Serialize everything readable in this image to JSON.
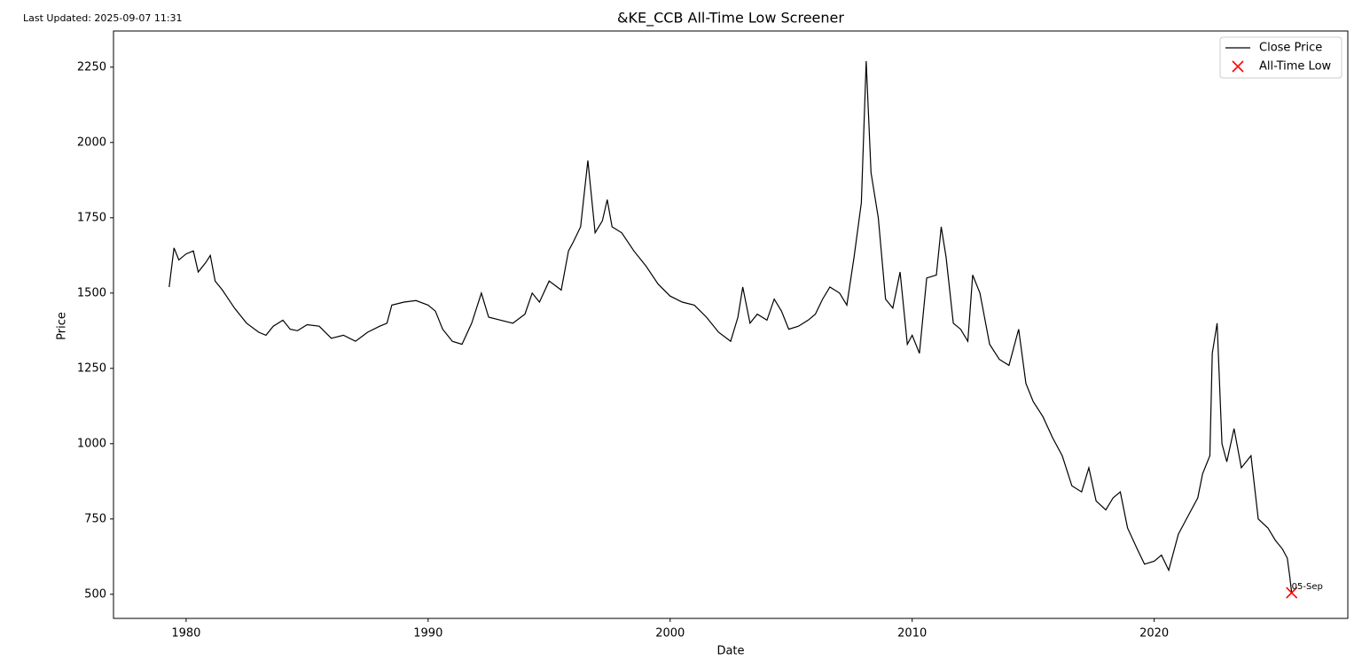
{
  "chart_data": {
    "type": "line",
    "title": "&KE_CCB All-Time Low Screener",
    "annotation": "Last Updated: 2025-09-07 11:31",
    "x_label": "Date",
    "y_label": "Price",
    "xlim": [
      1977,
      2028
    ],
    "ylim": [
      420,
      2370
    ],
    "xticks": [
      1980,
      1990,
      2000,
      2010,
      2020
    ],
    "yticks": [
      500,
      750,
      1000,
      1250,
      1500,
      1750,
      2000,
      2250
    ],
    "legend": "upper right",
    "x": [
      1979.3,
      1979.5,
      1979.7,
      1980.0,
      1980.3,
      1980.5,
      1980.8,
      1981.0,
      1981.2,
      1981.5,
      1982.0,
      1982.3,
      1982.5,
      1983.0,
      1983.3,
      1983.6,
      1984.0,
      1984.3,
      1984.6,
      1985.0,
      1985.5,
      1986.0,
      1986.5,
      1987.0,
      1987.5,
      1988.0,
      1988.3,
      1988.5,
      1989.0,
      1989.5,
      1990.0,
      1990.3,
      1990.6,
      1991.0,
      1991.4,
      1991.8,
      1992.2,
      1992.5,
      1993.0,
      1993.5,
      1994.0,
      1994.3,
      1994.6,
      1995.0,
      1995.5,
      1995.8,
      1996.0,
      1996.3,
      1996.6,
      1996.9,
      1997.2,
      1997.4,
      1997.6,
      1998.0,
      1998.5,
      1999.0,
      1999.5,
      2000.0,
      2000.5,
      2001.0,
      2001.5,
      2002.0,
      2002.5,
      2002.8,
      2003.0,
      2003.3,
      2003.6,
      2004.0,
      2004.3,
      2004.6,
      2004.9,
      2005.3,
      2005.7,
      2006.0,
      2006.3,
      2006.6,
      2007.0,
      2007.3,
      2007.6,
      2007.9,
      2008.1,
      2008.3,
      2008.6,
      2008.9,
      2009.2,
      2009.5,
      2009.8,
      2010.0,
      2010.3,
      2010.6,
      2011.0,
      2011.2,
      2011.4,
      2011.7,
      2012.0,
      2012.3,
      2012.5,
      2012.8,
      2013.2,
      2013.6,
      2014.0,
      2014.4,
      2014.7,
      2015.0,
      2015.4,
      2015.8,
      2016.2,
      2016.6,
      2017.0,
      2017.3,
      2017.6,
      2018.0,
      2018.3,
      2018.6,
      2018.9,
      2019.3,
      2019.6,
      2020.0,
      2020.3,
      2020.6,
      2021.0,
      2021.4,
      2021.8,
      2022.0,
      2022.3,
      2022.4,
      2022.6,
      2022.8,
      2023.0,
      2023.3,
      2023.6,
      2024.0,
      2024.3,
      2024.7,
      2025.0,
      2025.3,
      2025.5,
      2025.6,
      2025.68
    ],
    "series": [
      {
        "name": "Close Price",
        "color": "#000000",
        "values": [
          1520,
          1650,
          1610,
          1630,
          1640,
          1570,
          1600,
          1625,
          1540,
          1510,
          1450,
          1420,
          1400,
          1370,
          1360,
          1390,
          1410,
          1380,
          1375,
          1395,
          1390,
          1350,
          1360,
          1340,
          1370,
          1390,
          1400,
          1460,
          1470,
          1475,
          1460,
          1440,
          1380,
          1340,
          1330,
          1400,
          1500,
          1420,
          1410,
          1400,
          1430,
          1500,
          1470,
          1540,
          1510,
          1640,
          1670,
          1720,
          1940,
          1700,
          1740,
          1810,
          1720,
          1700,
          1640,
          1590,
          1530,
          1490,
          1470,
          1460,
          1420,
          1370,
          1340,
          1420,
          1520,
          1400,
          1430,
          1410,
          1480,
          1440,
          1380,
          1390,
          1410,
          1430,
          1480,
          1520,
          1500,
          1460,
          1620,
          1800,
          2270,
          1900,
          1750,
          1480,
          1450,
          1570,
          1330,
          1360,
          1300,
          1550,
          1560,
          1720,
          1620,
          1400,
          1380,
          1340,
          1560,
          1500,
          1330,
          1280,
          1260,
          1380,
          1200,
          1140,
          1090,
          1020,
          960,
          860,
          840,
          920,
          810,
          780,
          820,
          840,
          720,
          650,
          600,
          610,
          630,
          580,
          700,
          760,
          820,
          900,
          960,
          1300,
          1400,
          1000,
          940,
          1050,
          920,
          960,
          750,
          720,
          680,
          650,
          620,
          560,
          505
        ]
      },
      {
        "name": "All-Time Low",
        "color": "#ff0000",
        "type": "scatter",
        "x": [
          2025.68
        ],
        "values": [
          505
        ],
        "point_labels": [
          "05-Sep"
        ]
      }
    ]
  }
}
